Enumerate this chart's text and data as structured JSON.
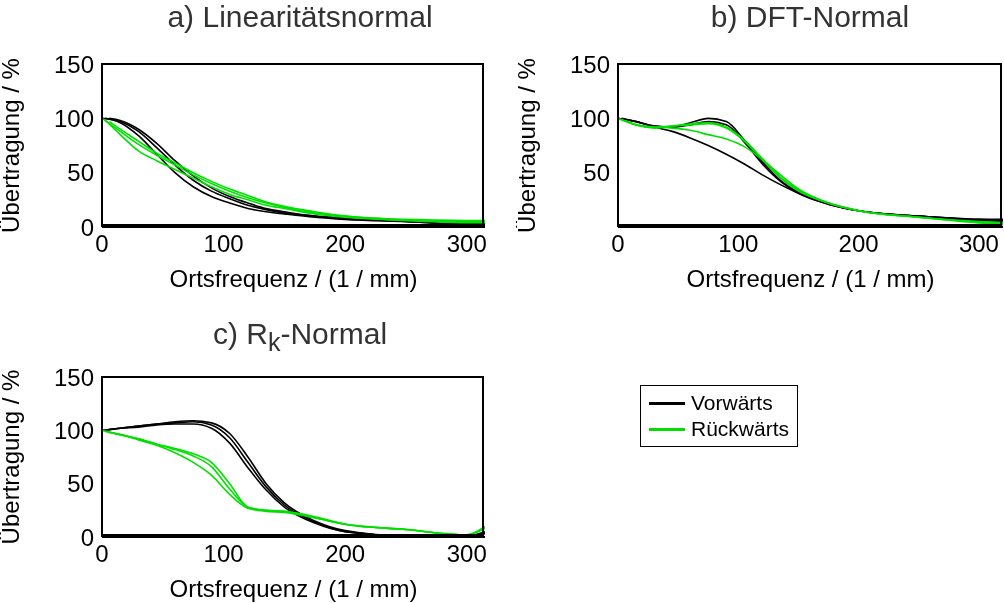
{
  "chart_data": [
    {
      "type": "line",
      "title": "a) Linearitätsnormal",
      "xlabel": "Ortsfrequenz / (1 / mm)",
      "ylabel": "Übertragung / %",
      "xlim": [
        0,
        315
      ],
      "xticks": [
        0,
        100,
        200,
        300
      ],
      "ylim": [
        0,
        150
      ],
      "yticks": [
        0,
        50,
        100,
        150
      ],
      "legend": "bottom right",
      "x": [
        0,
        15,
        30,
        45,
        60,
        75,
        90,
        105,
        120,
        135,
        150,
        175,
        200,
        250,
        300,
        315
      ],
      "series": [
        {
          "name": "Vorwärts",
          "color": "#000000",
          "values": [
            100,
            97,
            88,
            73,
            57,
            43,
            33,
            26,
            20,
            16,
            13,
            10,
            8,
            5,
            3,
            3
          ]
        },
        {
          "color": "#000000",
          "x": [
            3,
            15,
            30,
            45,
            60,
            75,
            90,
            105,
            120,
            135,
            150,
            175,
            200,
            250,
            300,
            315
          ],
          "values": [
            100,
            96,
            84,
            67,
            50,
            37,
            28,
            22,
            17,
            14,
            12,
            9,
            7,
            5,
            3,
            2
          ]
        },
        {
          "color": "#000000",
          "x": [
            6,
            15,
            30,
            45,
            60,
            75,
            90,
            105,
            120,
            135,
            150,
            175,
            200,
            250,
            300,
            315
          ],
          "values": [
            100,
            98,
            90,
            77,
            61,
            47,
            36,
            28,
            22,
            17,
            14,
            10,
            8,
            5,
            2,
            1
          ]
        },
        {
          "name": "Rückwärts",
          "color": "#00e000",
          "values": [
            100,
            88,
            76,
            66,
            57,
            48,
            40,
            33,
            27,
            22,
            18,
            13,
            10,
            6,
            4,
            4
          ]
        },
        {
          "color": "#00e000",
          "x": [
            3,
            15,
            30,
            45,
            60,
            75,
            90,
            105,
            120,
            135,
            150,
            175,
            200,
            250,
            300,
            315
          ],
          "values": [
            98,
            85,
            70,
            61,
            53,
            45,
            37,
            30,
            25,
            20,
            17,
            12,
            9,
            6,
            5,
            5
          ]
        },
        {
          "color": "#00e000",
          "x": [
            6,
            15,
            30,
            45,
            60,
            75,
            90,
            105,
            120,
            135,
            150,
            175,
            200,
            250,
            300,
            315
          ],
          "values": [
            97,
            90,
            79,
            68,
            59,
            50,
            42,
            35,
            29,
            23,
            19,
            14,
            10,
            7,
            6,
            6
          ]
        }
      ]
    },
    {
      "type": "line",
      "title": "b) DFT-Normal",
      "xlabel": "Ortsfrequenz / (1 / mm)",
      "ylabel": "Übertragung / %",
      "xlim": [
        0,
        320
      ],
      "xticks": [
        0,
        100,
        200,
        300
      ],
      "ylim": [
        0,
        150
      ],
      "yticks": [
        50,
        100,
        150
      ],
      "x": [
        0,
        15,
        30,
        45,
        60,
        75,
        90,
        105,
        120,
        135,
        150,
        175,
        200,
        250,
        300,
        320
      ],
      "series": [
        {
          "color": "#000000",
          "values": [
            100,
            97,
            93,
            92,
            96,
            100,
            97,
            80,
            60,
            43,
            32,
            21,
            15,
            10,
            7,
            6
          ]
        },
        {
          "color": "#000000",
          "x": [
            3,
            15,
            30,
            45,
            60,
            75,
            90,
            105,
            120,
            135,
            150,
            175,
            200,
            250,
            300,
            320
          ],
          "values": [
            100,
            97,
            93,
            92,
            94,
            97,
            94,
            78,
            58,
            42,
            31,
            21,
            15,
            10,
            7,
            7
          ]
        },
        {
          "color": "#000000",
          "x": [
            6,
            15,
            30,
            45,
            60,
            75,
            90,
            105,
            120,
            135,
            150,
            175,
            200,
            250,
            300,
            320
          ],
          "values": [
            99,
            97,
            92,
            88,
            82,
            75,
            67,
            58,
            48,
            39,
            31,
            21,
            15,
            10,
            6,
            5
          ]
        },
        {
          "color": "#00e000",
          "values": [
            100,
            94,
            92,
            93,
            95,
            96,
            92,
            80,
            63,
            46,
            34,
            22,
            15,
            9,
            5,
            4
          ]
        },
        {
          "color": "#00e000",
          "x": [
            3,
            15,
            30,
            45,
            60,
            75,
            90,
            105,
            120,
            135,
            150,
            175,
            200,
            250,
            300,
            320
          ],
          "values": [
            99,
            94,
            91,
            93,
            94,
            95,
            91,
            79,
            62,
            45,
            33,
            22,
            15,
            9,
            4,
            3
          ]
        },
        {
          "color": "#00e000",
          "x": [
            6,
            15,
            30,
            45,
            60,
            75,
            90,
            105,
            120,
            135,
            150,
            175,
            200,
            250,
            300,
            320
          ],
          "values": [
            98,
            94,
            92,
            91,
            89,
            85,
            81,
            74,
            62,
            48,
            35,
            22,
            15,
            9,
            4,
            2
          ]
        }
      ]
    },
    {
      "type": "line",
      "title": "c) R$_{k}$-Normal",
      "xlabel": "Ortsfrequenz / (1 / mm)",
      "ylabel": "Übertragung / %",
      "xlim": [
        0,
        315
      ],
      "xticks": [
        0,
        100,
        200,
        300
      ],
      "ylim": [
        0,
        150
      ],
      "yticks": [
        0,
        50,
        100,
        150
      ],
      "x": [
        0,
        15,
        30,
        45,
        60,
        75,
        90,
        105,
        120,
        135,
        150,
        175,
        200,
        250,
        300,
        315
      ],
      "series": [
        {
          "color": "#000000",
          "values": [
            100,
            102,
            104,
            106,
            108,
            109,
            107,
            97,
            75,
            50,
            32,
            15,
            6,
            1,
            1,
            5
          ]
        },
        {
          "color": "#000000",
          "x": [
            3,
            15,
            30,
            45,
            60,
            75,
            90,
            105,
            120,
            135,
            150,
            175,
            200,
            250,
            300,
            315
          ],
          "values": [
            100,
            102,
            104,
            106,
            107,
            108,
            105,
            93,
            70,
            47,
            30,
            14,
            5,
            1,
            1,
            4
          ]
        },
        {
          "color": "#000000",
          "x": [
            6,
            15,
            30,
            45,
            60,
            75,
            90,
            105,
            120,
            135,
            150,
            175,
            200,
            250,
            300,
            315
          ],
          "values": [
            101,
            102,
            103,
            105,
            106,
            106,
            102,
            88,
            65,
            44,
            28,
            13,
            5,
            1,
            1,
            3
          ]
        },
        {
          "color": "#00e000",
          "values": [
            100,
            96,
            92,
            87,
            82,
            76,
            66,
            45,
            28,
            25,
            24,
            19,
            12,
            7,
            2,
            10
          ]
        },
        {
          "color": "#00e000",
          "x": [
            3,
            15,
            30,
            45,
            60,
            75,
            90,
            105,
            120,
            135,
            150,
            175,
            200,
            250,
            300,
            315
          ],
          "values": [
            99,
            96,
            92,
            87,
            83,
            78,
            70,
            50,
            28,
            25,
            24,
            18,
            12,
            7,
            2,
            9
          ]
        },
        {
          "color": "#00e000",
          "x": [
            6,
            15,
            30,
            45,
            60,
            75,
            90,
            105,
            120,
            135,
            150,
            175,
            200,
            250,
            300,
            315
          ],
          "values": [
            98,
            96,
            91,
            86,
            79,
            70,
            58,
            40,
            27,
            24,
            23,
            18,
            12,
            7,
            2,
            8
          ]
        }
      ]
    }
  ]
}
